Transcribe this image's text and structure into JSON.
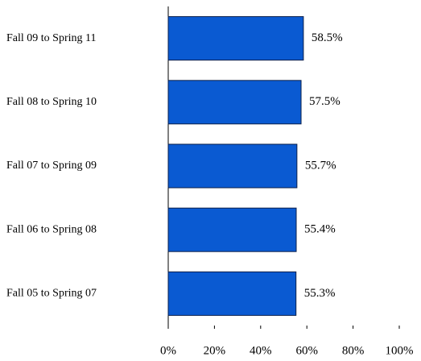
{
  "chart_data": {
    "type": "barh",
    "categories": [
      "Fall 09 to Spring 11",
      "Fall 08 to Spring 10",
      "Fall 07 to Spring 09",
      "Fall 06 to Spring 08",
      "Fall 05 to Spring 07"
    ],
    "values": [
      58.5,
      57.5,
      55.7,
      55.4,
      55.3
    ],
    "value_labels": [
      "58.5%",
      "57.5%",
      "55.7%",
      "55.4%",
      "55.3%"
    ],
    "color": "#0a5ad2",
    "xlim": [
      0,
      100
    ],
    "xticks": [
      {
        "value": 0,
        "label": "0%"
      },
      {
        "value": 20,
        "label": "20%"
      },
      {
        "value": 40,
        "label": "40%"
      },
      {
        "value": 60,
        "label": "60%"
      },
      {
        "value": 80,
        "label": "80%"
      },
      {
        "value": 100,
        "label": "100%"
      }
    ]
  }
}
